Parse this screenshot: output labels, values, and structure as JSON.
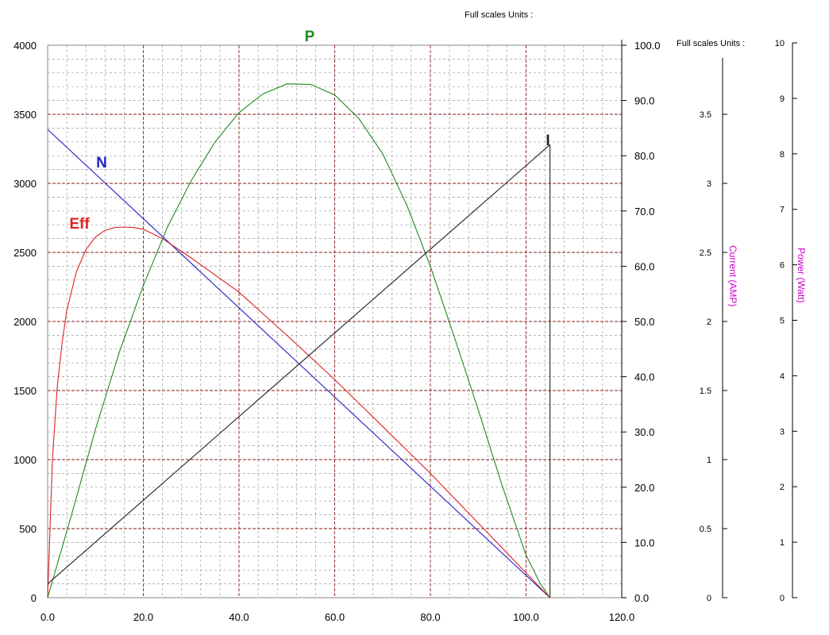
{
  "headers": {
    "top": "Full scales Units :",
    "right": "Full scales Units :"
  },
  "chart_data": {
    "type": "line",
    "x_ticks": [
      "0.0",
      "20.0",
      "40.0",
      "60.0",
      "80.0",
      "100.0",
      "120.0"
    ],
    "xlim": [
      0,
      120
    ],
    "left_axis": {
      "ylim": [
        0,
        4000
      ],
      "ticks": [
        "0",
        "500",
        "1000",
        "1500",
        "2000",
        "2500",
        "3000",
        "3500",
        "4000"
      ]
    },
    "mid_axis": {
      "ylim": [
        0,
        100
      ],
      "ticks": [
        "0.0",
        "10.0",
        "20.0",
        "30.0",
        "40.0",
        "50.0",
        "60.0",
        "70.0",
        "80.0",
        "90.0",
        "100.0"
      ]
    },
    "current_axis": {
      "label": "Current (AMP)",
      "ylim": [
        0,
        4
      ],
      "ticks": [
        "0",
        "0.5",
        "1",
        "1.5",
        "2",
        "2.5",
        "3",
        "3.5"
      ],
      "values": [
        0,
        0.5,
        1,
        1.5,
        2,
        2.5,
        3,
        3.5
      ]
    },
    "power_axis": {
      "label": "Power (Watt)",
      "ylim": [
        0,
        10
      ],
      "ticks": [
        "0",
        "1",
        "2",
        "3",
        "4",
        "5",
        "6",
        "7",
        "8",
        "9",
        "10"
      ]
    },
    "grid": true,
    "series": [
      {
        "name": "N",
        "color": "#2020c8",
        "axis": "left",
        "x": [
          0,
          105
        ],
        "y": [
          3390,
          0
        ]
      },
      {
        "name": "Eff",
        "color": "#e02020",
        "axis": "mid",
        "x": [
          0,
          1,
          2,
          3,
          4,
          6,
          8,
          10,
          12,
          14,
          16,
          18,
          20,
          24,
          30,
          40,
          50,
          60,
          70,
          80,
          90,
          100,
          105
        ],
        "y": [
          0,
          25,
          38,
          46,
          52,
          59,
          63,
          65.3,
          66.5,
          67,
          67.1,
          67,
          66.7,
          65,
          61.5,
          55.3,
          47.5,
          39.5,
          31,
          22.5,
          13.5,
          4.5,
          0
        ]
      },
      {
        "name": "P",
        "color": "#208a20",
        "axis": "mid",
        "x": [
          0,
          5,
          10,
          15,
          20,
          25,
          30,
          35,
          40,
          45,
          50,
          55,
          60,
          65,
          70,
          75,
          80,
          85,
          90,
          95,
          100,
          103,
          105
        ],
        "y": [
          0,
          15,
          30.5,
          44.5,
          56.5,
          67,
          75.5,
          82.5,
          87.8,
          91.2,
          93,
          92.9,
          91,
          86.8,
          80.4,
          71.2,
          60,
          47.2,
          34,
          20.3,
          7.7,
          2.5,
          0
        ]
      },
      {
        "name": "I",
        "color": "#202020",
        "axis": "mid",
        "x": [
          0,
          105
        ],
        "y": [
          2.5,
          82
        ]
      }
    ]
  }
}
